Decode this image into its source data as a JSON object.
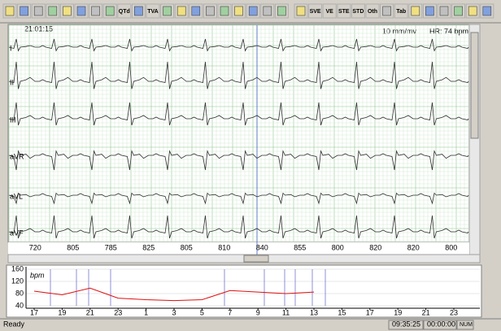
{
  "toolbar": {
    "buttons": [
      "QTd",
      "TVA",
      "SVE",
      "VE",
      "STE",
      "STD",
      "Oth",
      "Tab"
    ]
  },
  "ecg": {
    "time": "21:01:15",
    "gain": "10 mm/mv",
    "heart_rate": "HR: 74 bpm",
    "leads": [
      "I",
      "II",
      "III",
      "aVR",
      "aVL",
      "aVF"
    ],
    "rr_intervals": [
      720,
      805,
      785,
      825,
      805,
      810,
      840,
      855,
      800,
      820,
      820,
      800
    ]
  },
  "chart_data": {
    "type": "line",
    "y_label": "bpm",
    "categories": [
      "17",
      "19",
      "21",
      "23",
      "1",
      "3",
      "5",
      "7",
      "9",
      "11",
      "13",
      "15",
      "17",
      "19",
      "21",
      "23"
    ],
    "series": [
      {
        "color": "#e01010",
        "values": [
          88,
          76,
          98,
          65,
          60,
          57,
          60,
          90,
          85,
          80,
          85,
          null,
          null,
          null,
          null,
          null
        ]
      }
    ],
    "ylim": [
      40,
      160
    ],
    "yticks": [
      160,
      120,
      80,
      40
    ]
  },
  "status": {
    "left": "Ready",
    "time": "09:35:25",
    "elapsed": "00:00:00",
    "mode": "NUM"
  }
}
